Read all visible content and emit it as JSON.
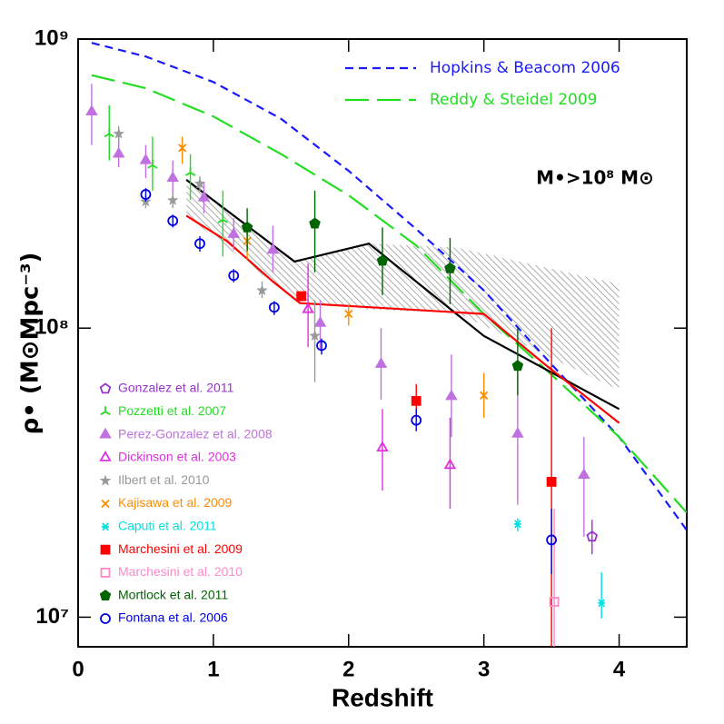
{
  "chart_data": {
    "type": "scatter",
    "xlabel": "Redshift",
    "ylabel": "ρ• (M⊙Mpc⁻³)",
    "annotation": "M•>10⁸ M⊙",
    "xlim": [
      0,
      4.5
    ],
    "xticks": [
      0,
      1,
      2,
      3,
      4
    ],
    "ylim": [
      7900000,
      1000000000
    ],
    "ylog": true,
    "yticks": [
      {
        "value": 10000000,
        "label": "10⁷"
      },
      {
        "value": 100000000,
        "label": "10⁸"
      },
      {
        "value": 1000000000,
        "label": "10⁹"
      }
    ],
    "series": [
      {
        "type": "band",
        "color": "#999999",
        "hatch": true,
        "x": [
          0.8,
          1.6,
          2.15,
          2.8,
          4.0
        ],
        "upper": [
          326000000,
          170000000,
          196000000,
          190000000,
          142000000
        ],
        "lower": [
          245000000,
          125000000,
          116000000,
          113000000,
          61000000
        ]
      },
      {
        "type": "line",
        "name": "Hopkins & Beacom 2006",
        "color": "#1a1aff",
        "dash": "short",
        "x": [
          0.1,
          0.5,
          1,
          1.5,
          2,
          2.5,
          3,
          3.5,
          4,
          4.5
        ],
        "values": [
          970000000,
          870000000,
          710000000,
          530000000,
          350000000,
          220000000,
          135000000,
          75000000,
          42000000,
          20000000
        ]
      },
      {
        "type": "line",
        "name": "Reddy & Steidel 2009",
        "color": "#22dd22",
        "dash": "long",
        "x": [
          0.1,
          0.5,
          1,
          1.5,
          2,
          2.5,
          3,
          3.5,
          4,
          4.5
        ],
        "values": [
          750000000,
          676000000,
          540000000,
          400000000,
          288000000,
          193000000,
          112000000,
          69000000,
          42000000,
          23000000
        ]
      },
      {
        "type": "line",
        "color": "#000000",
        "dash": "solid",
        "x": [
          0.8,
          1.6,
          2.15,
          3.0,
          4.0
        ],
        "values": [
          326000000,
          170000000,
          196000000,
          94000000,
          52500000
        ]
      },
      {
        "type": "line",
        "color": "#ff0000",
        "dash": "solid",
        "x": [
          0.8,
          1.1,
          1.44,
          1.64,
          3.0,
          3.45,
          4.0
        ],
        "values": [
          245000000,
          200000000,
          145000000,
          122000000,
          112000000,
          75000000,
          47000000
        ]
      },
      {
        "type": "scatter",
        "name": "Gonzalez et al. 2011",
        "color": "#9933cc",
        "marker": "pentagon",
        "filled": false,
        "x": [
          3.8
        ],
        "values": [
          19000000
        ],
        "lower": [
          16500000
        ],
        "upper": [
          21700000
        ]
      },
      {
        "type": "scatter",
        "name": "Pozzetti et al. 2007",
        "color": "#22dd22",
        "marker": "tri",
        "filled": true,
        "x": [
          0.23,
          0.55,
          0.83,
          1.07
        ],
        "values": [
          470000000,
          366000000,
          345000000,
          237000000
        ],
        "lower": [
          380000000,
          299000000,
          277000000,
          177000000
        ],
        "upper": [
          590000000,
          460000000,
          400000000,
          299000000
        ]
      },
      {
        "type": "scatter",
        "name": "Perez-Gonzalez et al. 2008",
        "color": "#c070e0",
        "marker": "triangle",
        "filled": true,
        "x": [
          0.1,
          0.3,
          0.5,
          0.7,
          0.93,
          1.15,
          1.44,
          1.79,
          2.24,
          2.76,
          3.25,
          3.74
        ],
        "values": [
          560000000,
          400000000,
          380000000,
          330000000,
          282000000,
          211000000,
          186000000,
          104000000,
          75000000,
          58000000,
          43000000,
          31000000
        ],
        "lower": [
          430000000,
          360000000,
          330000000,
          288000000,
          249000000,
          186000000,
          156000000,
          84000000,
          56500000,
          42000000,
          24500000,
          19000000
        ],
        "upper": [
          700000000,
          480000000,
          430000000,
          380000000,
          320000000,
          240000000,
          226000000,
          125000000,
          100000000,
          81000000,
          75000000,
          42000000
        ]
      },
      {
        "type": "scatter",
        "name": "Dickinson et al. 2003",
        "color": "#e030e0",
        "marker": "triangle",
        "filled": false,
        "x": [
          1.7,
          2.25,
          2.75
        ],
        "values": [
          116000000,
          38500000,
          33500000
        ],
        "lower": [
          86000000,
          27400000,
          23700000
        ],
        "upper": [
          167000000,
          52500000,
          49000000
        ]
      },
      {
        "type": "scatter",
        "name": "Ilbert et al. 2010",
        "color": "#999999",
        "marker": "star",
        "filled": true,
        "x": [
          0.3,
          0.5,
          0.7,
          0.9,
          1.36,
          1.75
        ],
        "values": [
          470000000,
          274000000,
          277000000,
          316000000,
          135000000,
          94000000
        ],
        "lower": [
          440000000,
          260000000,
          260000000,
          298000000,
          127000000,
          65000000
        ],
        "upper": [
          500000000,
          290000000,
          295000000,
          335000000,
          145000000,
          125000000
        ]
      },
      {
        "type": "scatter",
        "name": "Kajisawa et al. 2009",
        "color": "#ff8c00",
        "marker": "x",
        "filled": true,
        "x": [
          0.77,
          1.25,
          2.0,
          3.0
        ],
        "values": [
          420000000,
          200000000,
          112000000,
          58500000
        ],
        "lower": [
          370000000,
          173000000,
          102000000,
          49000000
        ],
        "upper": [
          460000000,
          232000000,
          121000000,
          70000000
        ]
      },
      {
        "type": "scatter",
        "name": "Caputi et al. 2011",
        "color": "#00e0e0",
        "marker": "asterisk",
        "filled": true,
        "x": [
          3.25,
          3.87
        ],
        "values": [
          21000000,
          11200000
        ],
        "lower": [
          19800000,
          9900000
        ],
        "upper": [
          22000000,
          14300000
        ]
      },
      {
        "type": "scatter",
        "name": "Marchesini et al. 2009",
        "color": "#ff0000",
        "marker": "square",
        "filled": true,
        "x": [
          1.65,
          2.5,
          3.5
        ],
        "values": [
          129000000,
          56000000,
          29400000
        ],
        "lower": [
          125000000,
          48000000,
          7000000
        ],
        "upper": [
          133000000,
          64000000,
          100000000
        ]
      },
      {
        "type": "scatter",
        "name": "Marchesini et al. 2010",
        "color": "#ff88cc",
        "marker": "square",
        "filled": false,
        "x": [
          3.52
        ],
        "values": [
          11300000
        ],
        "lower": [
          7000000
        ],
        "upper": [
          23700000
        ]
      },
      {
        "type": "scatter",
        "name": "Mortlock et al. 2011",
        "color": "#006400",
        "marker": "pentagon",
        "filled": true,
        "x": [
          1.25,
          1.75,
          2.25,
          2.75,
          3.25
        ],
        "values": [
          223000000,
          230000000,
          171000000,
          161000000,
          74000000
        ],
        "lower": [
          185000000,
          156000000,
          130000000,
          121000000,
          58500000
        ],
        "upper": [
          260000000,
          299000000,
          223000000,
          205000000,
          100000000
        ]
      },
      {
        "type": "scatter",
        "name": "Fontana et al. 2006",
        "color": "#0000e6",
        "marker": "circle",
        "filled": false,
        "x": [
          0.5,
          0.7,
          0.9,
          1.15,
          1.45,
          1.8,
          2.5,
          3.5
        ],
        "values": [
          290000000,
          235000000,
          196000000,
          152000000,
          118000000,
          87000000,
          48000000,
          18500000
        ],
        "lower": [
          274000000,
          223000000,
          184000000,
          144000000,
          111000000,
          81000000,
          44000000,
          14100000
        ],
        "upper": [
          305000000,
          247000000,
          208000000,
          160000000,
          124000000,
          92000000,
          52500000,
          23700000
        ]
      }
    ]
  }
}
